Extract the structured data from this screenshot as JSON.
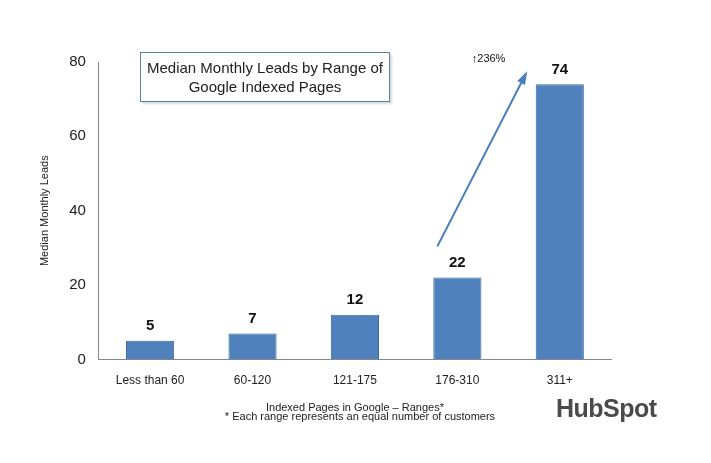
{
  "chart_data": {
    "type": "bar",
    "title": "Median Monthly Leads by Range of Google Indexed Pages",
    "x_label": "Indexed Pages in Google – Ranges*",
    "y_label": "Median Monthly Leads",
    "categories": [
      "Less than 60",
      "60-120",
      "121-175",
      "176-310",
      "311+"
    ],
    "values": [
      5,
      7,
      12,
      22,
      74
    ],
    "color": "#4f81bd",
    "ylim": [
      0,
      80
    ],
    "yticks": [
      0,
      20,
      40,
      60,
      80
    ],
    "grid": false,
    "data_labels": true,
    "annotation": "↑236%",
    "note": "* Each range represents an equal number of customers",
    "source": "HubSpot"
  }
}
